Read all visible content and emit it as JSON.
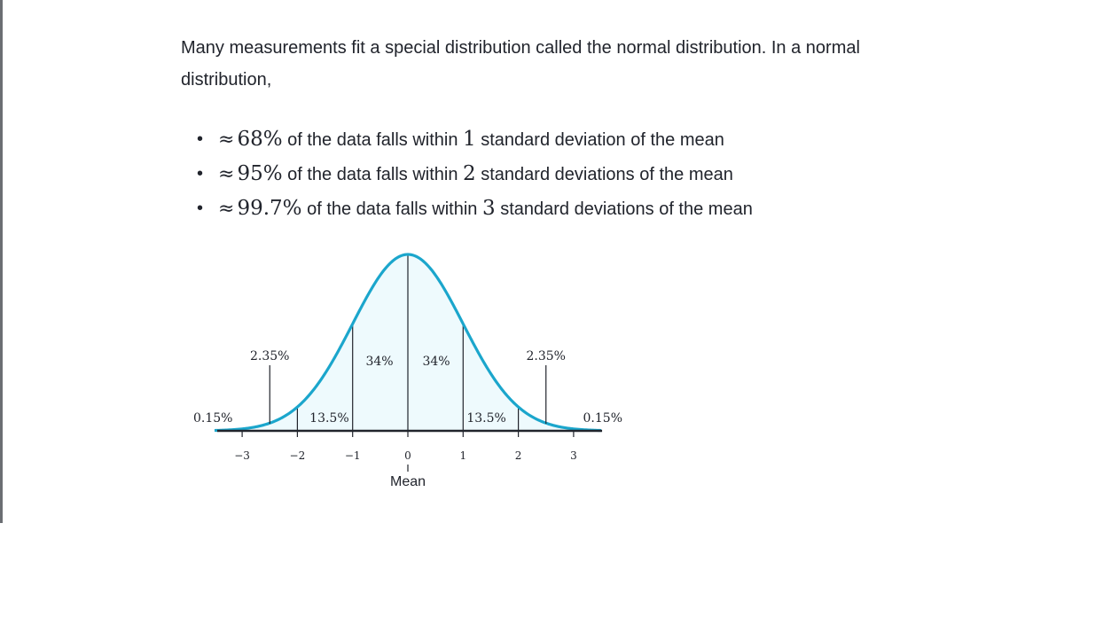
{
  "intro": "Many measurements fit a special distribution called the normal distribution. In a normal distribution,",
  "rules": [
    {
      "approx": "≈",
      "pct": "68%",
      "text_a": "of the data falls within",
      "num": "1",
      "text_b": "standard deviation of the mean"
    },
    {
      "approx": "≈",
      "pct": "95%",
      "text_a": "of the data falls within",
      "num": "2",
      "text_b": "standard deviations of the mean"
    },
    {
      "approx": "≈",
      "pct": "99.7%",
      "text_a": "of the data falls within",
      "num": "3",
      "text_b": "standard deviations of the mean"
    }
  ],
  "colors": {
    "curve": "#1ba6cc",
    "fill": "#eefafd",
    "axis": "#21242c",
    "text": "#21242c"
  },
  "chart_data": {
    "type": "area",
    "x_ticks": [
      "−3",
      "−2",
      "−1",
      "0",
      "1",
      "2",
      "3"
    ],
    "tick_values": [
      -3,
      -2,
      -1,
      0,
      1,
      2,
      3
    ],
    "xlim": [
      -3.5,
      3.5
    ],
    "region_labels": [
      {
        "label": "0.15%",
        "x": -3.25
      },
      {
        "label": "2.35%",
        "x": -2.5
      },
      {
        "label": "13.5%",
        "x": -1.5
      },
      {
        "label": "34%",
        "x": -0.5
      },
      {
        "label": "34%",
        "x": 0.5
      },
      {
        "label": "13.5%",
        "x": 1.5
      },
      {
        "label": "2.35%",
        "x": 2.5
      },
      {
        "label": "0.15%",
        "x": 3.25
      }
    ],
    "mean_label": "Mean",
    "grid": false
  }
}
